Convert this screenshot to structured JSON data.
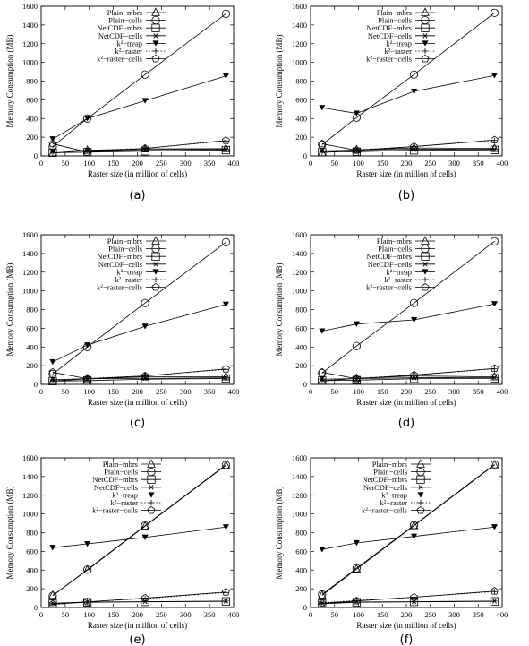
{
  "figure": {
    "captions": [
      "(a)",
      "(b)",
      "(c)",
      "(d)",
      "(e)",
      "(f)"
    ]
  },
  "chart_data": [
    {
      "type": "line",
      "caption": "(a)",
      "xlabel": "Raster size (in million of cells)",
      "ylabel": "Memory Consumption (MB)",
      "xlim": [
        0,
        400
      ],
      "ylim": [
        0,
        1600
      ],
      "xticks": [
        0,
        50,
        100,
        150,
        200,
        250,
        300,
        350,
        400
      ],
      "yticks": [
        0,
        200,
        400,
        600,
        800,
        1000,
        1200,
        1400,
        1600
      ],
      "legend_position": "top-right",
      "x": [
        24,
        96,
        216,
        384
      ],
      "series": [
        {
          "name": "Plain−mbrs",
          "marker": "triangle-up",
          "dash": "solid",
          "values": [
            30,
            60,
            75,
            78
          ]
        },
        {
          "name": "Plain−cells",
          "marker": "circle",
          "dash": "solid",
          "values": [
            100,
            400,
            870,
            1520
          ]
        },
        {
          "name": "NetCDF−mbrs",
          "marker": "square",
          "dash": "solid",
          "values": [
            35,
            40,
            50,
            62
          ]
        },
        {
          "name": "NetCDF−cells",
          "marker": "asterisk",
          "dash": "solid",
          "values": [
            50,
            60,
            65,
            70
          ]
        },
        {
          "name": "k²−treap",
          "marker": "triangle-down",
          "dash": "solid",
          "values": [
            180,
            400,
            590,
            855
          ]
        },
        {
          "name": "k²−raster",
          "marker": "plus",
          "dash": "dotted",
          "values": [
            30,
            60,
            80,
            160
          ]
        },
        {
          "name": "k²−raster−cells",
          "marker": "pentagon",
          "dash": "solid",
          "values": [
            130,
            40,
            80,
            165
          ]
        }
      ]
    },
    {
      "type": "line",
      "caption": "(b)",
      "xlabel": "Raster size (in million of cells)",
      "ylabel": "Memory Consumption (MB)",
      "xlim": [
        0,
        400
      ],
      "ylim": [
        0,
        1600
      ],
      "xticks": [
        0,
        50,
        100,
        150,
        200,
        250,
        300,
        350,
        400
      ],
      "yticks": [
        0,
        200,
        400,
        600,
        800,
        1000,
        1200,
        1400,
        1600
      ],
      "legend_position": "top-right",
      "x": [
        24,
        96,
        216,
        384
      ],
      "series": [
        {
          "name": "Plain−mbrs",
          "marker": "triangle-up",
          "dash": "solid",
          "values": [
            35,
            65,
            85,
            80
          ]
        },
        {
          "name": "Plain−cells",
          "marker": "circle",
          "dash": "solid",
          "values": [
            120,
            410,
            870,
            1530
          ]
        },
        {
          "name": "NetCDF−mbrs",
          "marker": "square",
          "dash": "solid",
          "values": [
            40,
            45,
            60,
            65
          ]
        },
        {
          "name": "NetCDF−cells",
          "marker": "asterisk",
          "dash": "solid",
          "values": [
            55,
            62,
            70,
            72
          ]
        },
        {
          "name": "k²−treap",
          "marker": "triangle-down",
          "dash": "solid",
          "values": [
            515,
            455,
            690,
            860
          ]
        },
        {
          "name": "k²−raster",
          "marker": "plus",
          "dash": "dotted",
          "values": [
            40,
            65,
            100,
            165
          ]
        },
        {
          "name": "k²−raster−cells",
          "marker": "pentagon",
          "dash": "solid",
          "values": [
            130,
            60,
            100,
            170
          ]
        }
      ]
    },
    {
      "type": "line",
      "caption": "(c)",
      "xlabel": "Raster size (in million of cells)",
      "ylabel": "Memory Consumption (MB)",
      "xlim": [
        0,
        400
      ],
      "ylim": [
        0,
        1600
      ],
      "xticks": [
        0,
        50,
        100,
        150,
        200,
        250,
        300,
        350,
        400
      ],
      "yticks": [
        0,
        200,
        400,
        600,
        800,
        1000,
        1200,
        1400,
        1600
      ],
      "legend_position": "top-right",
      "x": [
        24,
        96,
        216,
        384
      ],
      "series": [
        {
          "name": "Plain−mbrs",
          "marker": "triangle-up",
          "dash": "solid",
          "values": [
            35,
            60,
            80,
            80
          ]
        },
        {
          "name": "Plain−cells",
          "marker": "circle",
          "dash": "solid",
          "values": [
            110,
            400,
            870,
            1520
          ]
        },
        {
          "name": "NetCDF−mbrs",
          "marker": "square",
          "dash": "solid",
          "values": [
            35,
            40,
            55,
            62
          ]
        },
        {
          "name": "NetCDF−cells",
          "marker": "asterisk",
          "dash": "solid",
          "values": [
            50,
            60,
            65,
            70
          ]
        },
        {
          "name": "k²−treap",
          "marker": "triangle-down",
          "dash": "solid",
          "values": [
            240,
            420,
            620,
            855
          ]
        },
        {
          "name": "k²−raster",
          "marker": "plus",
          "dash": "dotted",
          "values": [
            40,
            65,
            90,
            160
          ]
        },
        {
          "name": "k²−raster−cells",
          "marker": "pentagon",
          "dash": "solid",
          "values": [
            130,
            60,
            90,
            165
          ]
        }
      ]
    },
    {
      "type": "line",
      "caption": "(d)",
      "xlabel": "Raster size (in million of cells)",
      "ylabel": "Memory Consumption (MB)",
      "xlim": [
        0,
        400
      ],
      "ylim": [
        0,
        1600
      ],
      "xticks": [
        0,
        50,
        100,
        150,
        200,
        250,
        300,
        350,
        400
      ],
      "yticks": [
        0,
        200,
        400,
        600,
        800,
        1000,
        1200,
        1400,
        1600
      ],
      "legend_position": "top-right",
      "x": [
        24,
        96,
        216,
        384
      ],
      "series": [
        {
          "name": "Plain−mbrs",
          "marker": "triangle-up",
          "dash": "solid",
          "values": [
            35,
            65,
            90,
            80
          ]
        },
        {
          "name": "Plain−cells",
          "marker": "circle",
          "dash": "solid",
          "values": [
            120,
            410,
            870,
            1530
          ]
        },
        {
          "name": "NetCDF−mbrs",
          "marker": "square",
          "dash": "solid",
          "values": [
            40,
            45,
            60,
            65
          ]
        },
        {
          "name": "NetCDF−cells",
          "marker": "asterisk",
          "dash": "solid",
          "values": [
            55,
            62,
            70,
            72
          ]
        },
        {
          "name": "k²−treap",
          "marker": "triangle-down",
          "dash": "solid",
          "values": [
            570,
            645,
            690,
            860
          ]
        },
        {
          "name": "k²−raster",
          "marker": "plus",
          "dash": "dotted",
          "values": [
            40,
            65,
            100,
            165
          ]
        },
        {
          "name": "k²−raster−cells",
          "marker": "pentagon",
          "dash": "solid",
          "values": [
            130,
            60,
            100,
            170
          ]
        }
      ]
    },
    {
      "type": "line",
      "caption": "(e)",
      "xlabel": "Raster size (in million of cells)",
      "ylabel": "Memory Consumption (MB)",
      "xlim": [
        0,
        400
      ],
      "ylim": [
        0,
        1600
      ],
      "xticks": [
        0,
        50,
        100,
        150,
        200,
        250,
        300,
        350,
        400
      ],
      "yticks": [
        0,
        200,
        400,
        600,
        800,
        1000,
        1200,
        1400,
        1600
      ],
      "legend_position": "top-left",
      "x": [
        24,
        96,
        216,
        384
      ],
      "series": [
        {
          "name": "Plain−mbrs",
          "marker": "triangle-up",
          "dash": "solid",
          "values": [
            130,
            400,
            870,
            1520
          ]
        },
        {
          "name": "Plain−cells",
          "marker": "circle",
          "dash": "solid",
          "values": [
            125,
            405,
            875,
            1525
          ]
        },
        {
          "name": "NetCDF−mbrs",
          "marker": "square",
          "dash": "solid",
          "values": [
            40,
            55,
            60,
            65
          ]
        },
        {
          "name": "NetCDF−cells",
          "marker": "asterisk",
          "dash": "solid",
          "values": [
            45,
            58,
            62,
            68
          ]
        },
        {
          "name": "k²−treap",
          "marker": "triangle-down",
          "dash": "solid",
          "values": [
            640,
            680,
            750,
            860
          ]
        },
        {
          "name": "k²−raster",
          "marker": "plus",
          "dash": "dotted",
          "values": [
            30,
            60,
            95,
            160
          ]
        },
        {
          "name": "k²−raster−cells",
          "marker": "pentagon",
          "dash": "solid",
          "values": [
            35,
            60,
            100,
            165
          ]
        }
      ]
    },
    {
      "type": "line",
      "caption": "(f)",
      "xlabel": "Raster size (in million of cells)",
      "ylabel": "Memory Consumption (MB)",
      "xlim": [
        0,
        400
      ],
      "ylim": [
        0,
        1600
      ],
      "xticks": [
        0,
        50,
        100,
        150,
        200,
        250,
        300,
        350,
        400
      ],
      "yticks": [
        0,
        200,
        400,
        600,
        800,
        1000,
        1200,
        1400,
        1600
      ],
      "legend_position": "top-left",
      "x": [
        24,
        96,
        216,
        384
      ],
      "series": [
        {
          "name": "Plain−mbrs",
          "marker": "triangle-up",
          "dash": "solid",
          "values": [
            130,
            410,
            875,
            1525
          ]
        },
        {
          "name": "Plain−cells",
          "marker": "circle",
          "dash": "solid",
          "values": [
            140,
            420,
            880,
            1530
          ]
        },
        {
          "name": "NetCDF−mbrs",
          "marker": "square",
          "dash": "solid",
          "values": [
            40,
            55,
            60,
            65
          ]
        },
        {
          "name": "NetCDF−cells",
          "marker": "asterisk",
          "dash": "solid",
          "values": [
            45,
            58,
            62,
            68
          ]
        },
        {
          "name": "k²−treap",
          "marker": "triangle-down",
          "dash": "solid",
          "values": [
            620,
            690,
            760,
            860
          ]
        },
        {
          "name": "k²−raster",
          "marker": "plus",
          "dash": "dotted",
          "values": [
            50,
            75,
            110,
            170
          ]
        },
        {
          "name": "k²−raster−cells",
          "marker": "pentagon",
          "dash": "solid",
          "values": [
            45,
            70,
            110,
            175
          ]
        }
      ]
    }
  ]
}
